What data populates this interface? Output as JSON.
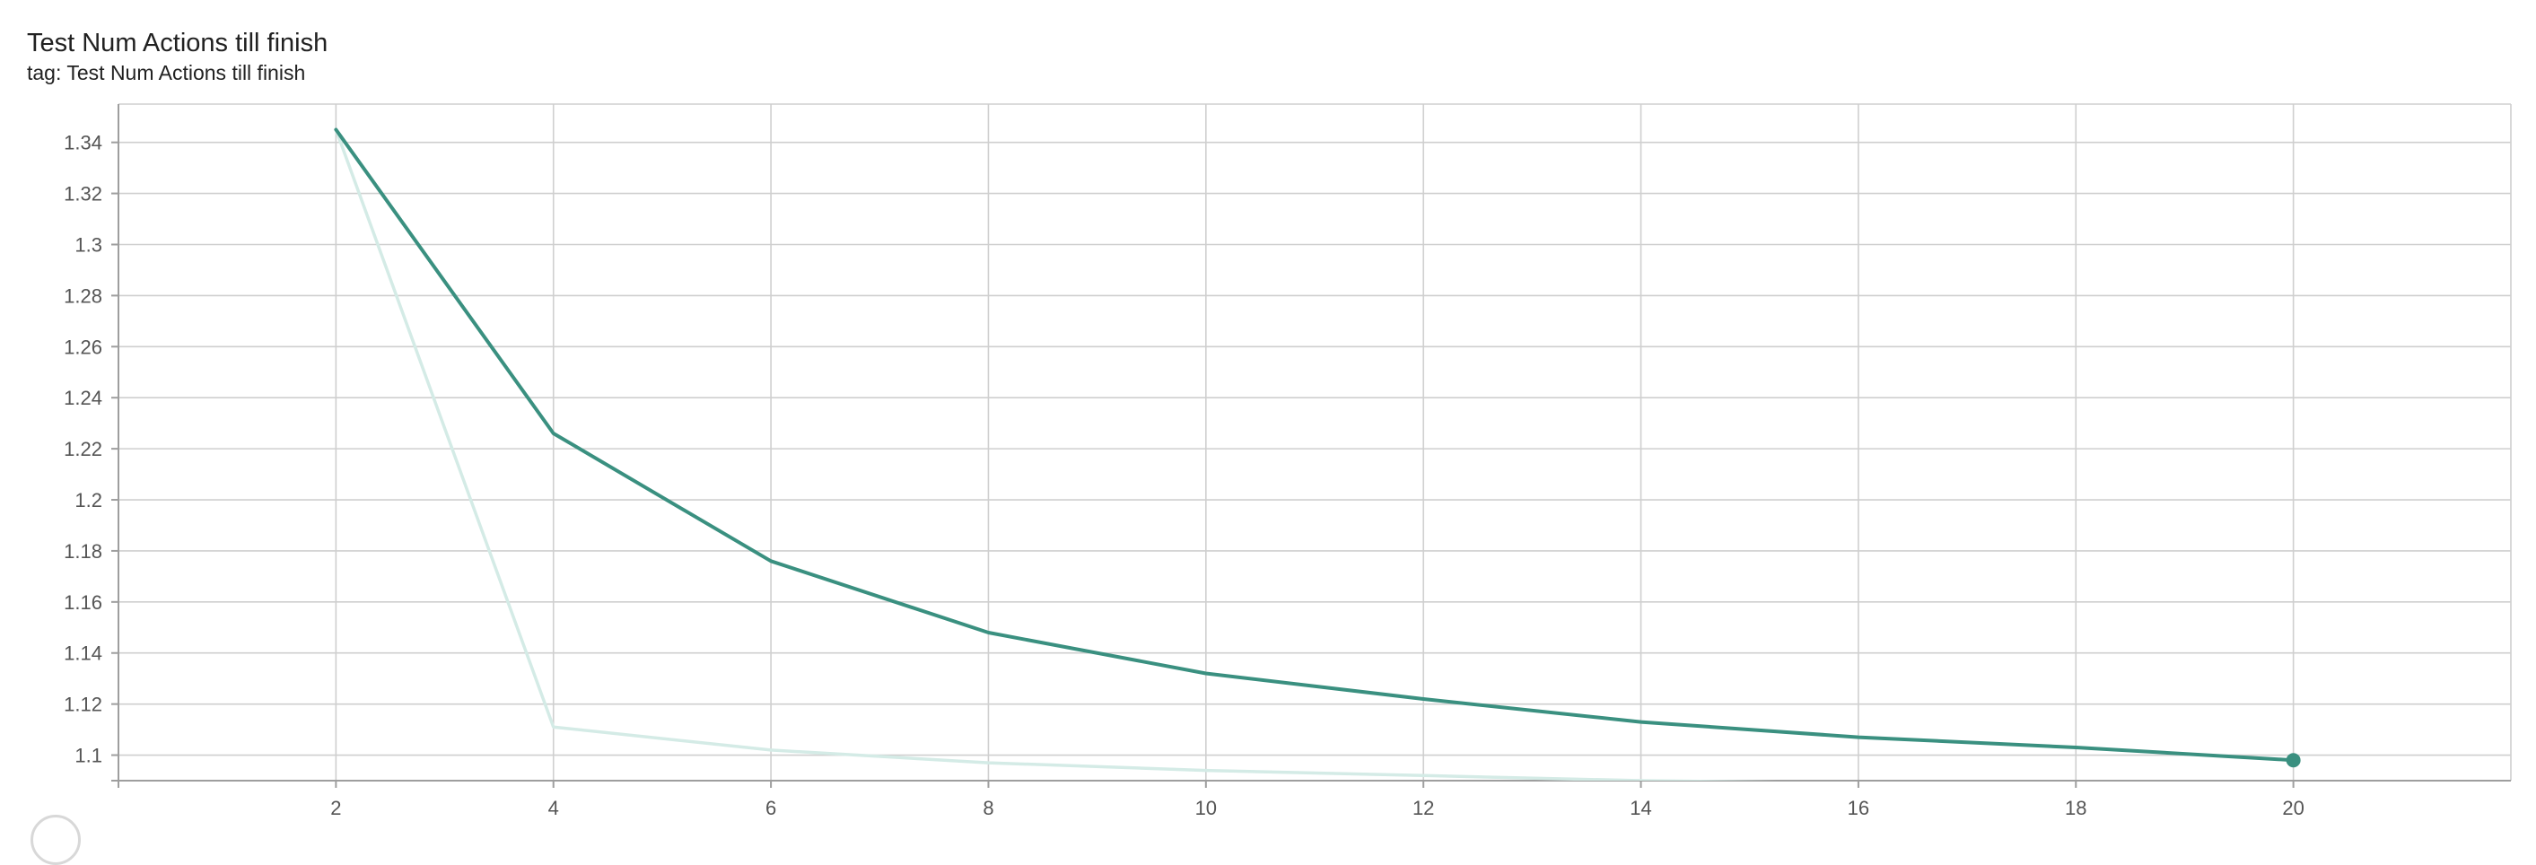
{
  "card": {
    "title": "Test Num Actions till finish",
    "tag_label": "tag:",
    "tag_value": "Test Num Actions till finish"
  },
  "colors": {
    "smoothed": "#3a9080",
    "raw": "#d4ebe6",
    "grid": "#cfcfcf",
    "axis": "#9e9e9e",
    "tick_text": "#555555"
  },
  "chart_data": {
    "type": "line",
    "title": "Test Num Actions till finish",
    "xlabel": "",
    "ylabel": "",
    "xlim": [
      0.0,
      22.0
    ],
    "ylim": [
      1.09,
      1.355
    ],
    "x_ticks": [
      2,
      4,
      6,
      8,
      10,
      12,
      14,
      16,
      18,
      20
    ],
    "y_ticks": [
      1.1,
      1.12,
      1.14,
      1.16,
      1.18,
      1.2,
      1.22,
      1.24,
      1.26,
      1.28,
      1.3,
      1.32,
      1.34
    ],
    "y_tick_labels": [
      "1.1",
      "1.12",
      "1.14",
      "1.16",
      "1.18",
      "1.2",
      "1.22",
      "1.24",
      "1.26",
      "1.28",
      "1.3",
      "1.32",
      "1.34"
    ],
    "grid": true,
    "series": [
      {
        "role": "raw",
        "x": [
          2,
          4,
          6,
          8,
          10,
          12,
          14,
          16,
          18,
          20
        ],
        "y": [
          1.345,
          1.111,
          1.102,
          1.097,
          1.094,
          1.092,
          1.09,
          1.089,
          1.088,
          1.087
        ]
      },
      {
        "role": "smoothed",
        "x": [
          2,
          4,
          6,
          8,
          10,
          12,
          14,
          16,
          18,
          20
        ],
        "y": [
          1.345,
          1.226,
          1.176,
          1.148,
          1.132,
          1.122,
          1.113,
          1.107,
          1.103,
          1.098
        ]
      }
    ]
  }
}
